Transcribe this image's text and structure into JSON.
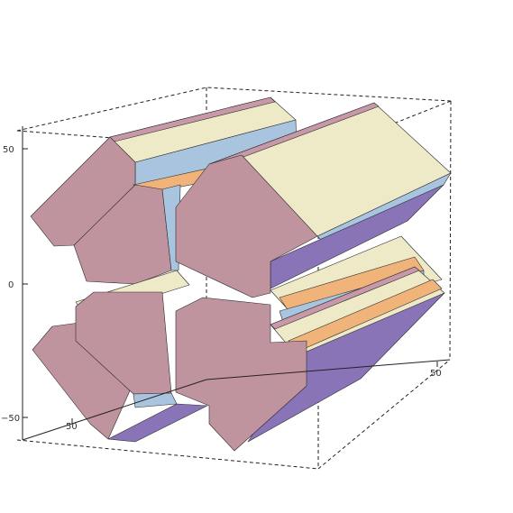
{
  "figure": {
    "type": "3d-surface-plot",
    "description_colors": {
      "end_face": "#c0949f",
      "top_face": "#eeeac8",
      "side_face_blue": "#a9c4df",
      "side_face_orange": "#f0b37a",
      "underside_purple": "#8a74b8",
      "trim_pink": "#c799a8"
    },
    "axes": {
      "vertical_ticks": [
        "50",
        "0",
        "−50"
      ],
      "depth_ticks": [
        "50"
      ],
      "horizontal_ticks": [
        "50"
      ]
    },
    "box": {
      "dashed_hidden_edges": true
    }
  }
}
